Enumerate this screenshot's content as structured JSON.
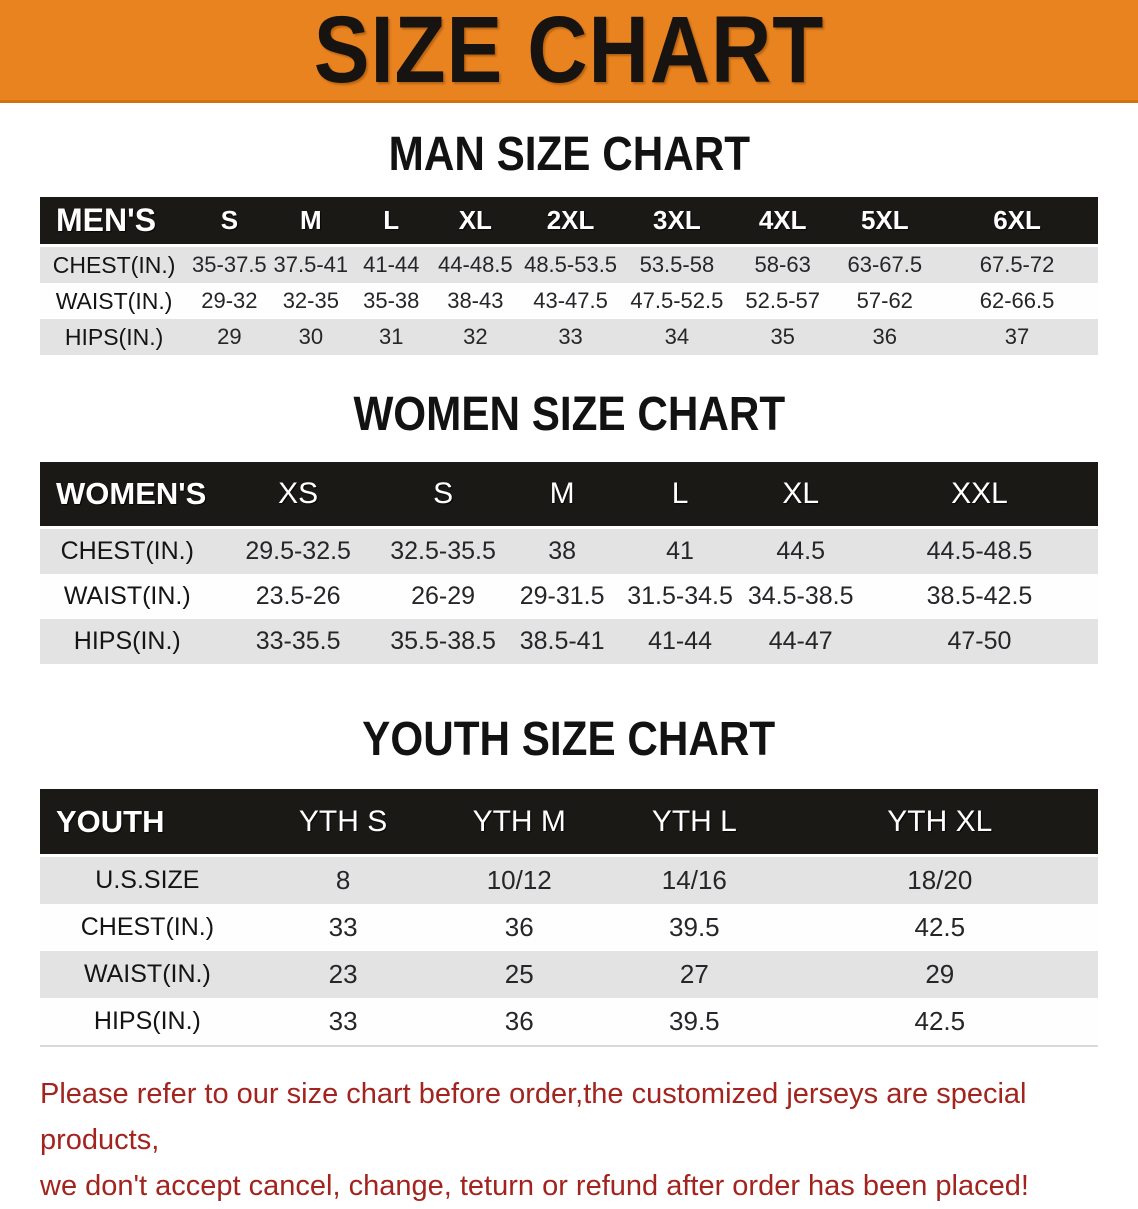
{
  "banner": {
    "title": "SIZE CHART",
    "bg_color": "#E98320",
    "text_color": "#171310"
  },
  "sections": {
    "men": {
      "title": "MAN SIZE CHART",
      "table": {
        "header": [
          "MEN'S",
          "S",
          "M",
          "L",
          "XL",
          "2XL",
          "3XL",
          "4XL",
          "5XL",
          "6XL"
        ],
        "rows": [
          [
            "CHEST(IN.)",
            "35-37.5",
            "37.5-41",
            "41-44",
            "44-48.5",
            "48.5-53.5",
            "53.5-58",
            "58-63",
            "63-67.5",
            "67.5-72"
          ],
          [
            "WAIST(IN.)",
            "29-32",
            "32-35",
            "35-38",
            "38-43",
            "43-47.5",
            "47.5-52.5",
            "52.5-57",
            "57-62",
            "62-66.5"
          ],
          [
            "HIPS(IN.)",
            "29",
            "30",
            "31",
            "32",
            "33",
            "34",
            "35",
            "36",
            "37"
          ]
        ]
      }
    },
    "women": {
      "title": "WOMEN SIZE CHART",
      "table": {
        "header": [
          "WOMEN'S",
          "XS",
          "S",
          "M",
          "L",
          "XL",
          "XXL"
        ],
        "rows": [
          [
            "CHEST(IN.)",
            "29.5-32.5",
            "32.5-35.5",
            "38",
            "41",
            "44.5",
            "44.5-48.5"
          ],
          [
            "WAIST(IN.)",
            "23.5-26",
            "26-29",
            "29-31.5",
            "31.5-34.5",
            "34.5-38.5",
            "38.5-42.5"
          ],
          [
            "HIPS(IN.)",
            "33-35.5",
            "35.5-38.5",
            "38.5-41",
            "41-44",
            "44-47",
            "47-50"
          ]
        ]
      }
    },
    "youth": {
      "title": "YOUTH SIZE CHART",
      "table": {
        "header": [
          "YOUTH",
          "YTH S",
          "YTH M",
          "YTH L",
          "YTH XL"
        ],
        "rows": [
          [
            "U.S.SIZE",
            "8",
            "10/12",
            "14/16",
            "18/20"
          ],
          [
            "CHEST(IN.)",
            "33",
            "36",
            "39.5",
            "42.5"
          ],
          [
            "WAIST(IN.)",
            "23",
            "25",
            "27",
            "29"
          ],
          [
            "HIPS(IN.)",
            "33",
            "36",
            "39.5",
            "42.5"
          ]
        ]
      }
    }
  },
  "footer": {
    "line1": "Please refer to our size chart before order,the customized jerseys are special products,",
    "line2": "we don't accept cancel, change, teturn or refund after order has been placed!",
    "text_color": "#A3241F"
  },
  "colors": {
    "header_band": "#1b1916",
    "row_shaded": "#e3e3e3",
    "row_plain": "#fefefe"
  }
}
